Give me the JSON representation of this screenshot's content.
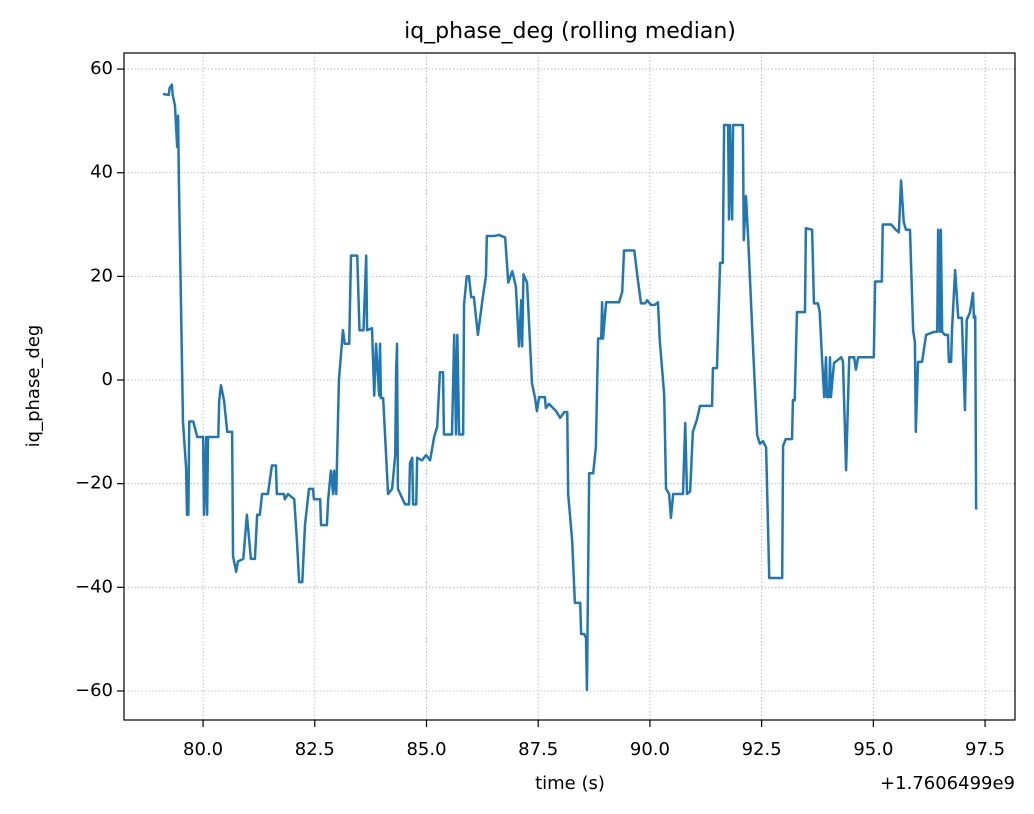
{
  "chart_data": {
    "type": "line",
    "title": "iq_phase_deg (rolling median)",
    "xlabel": "time (s)",
    "ylabel": "iq_phase_deg",
    "x_offset_label": "+1.7606499e9",
    "grid": true,
    "xlim": [
      78.23,
      98.17
    ],
    "ylim": [
      -65.6,
      63.1
    ],
    "xticks": [
      {
        "value": 80,
        "label": "80.0"
      },
      {
        "value": 82.5,
        "label": "82.5"
      },
      {
        "value": 85,
        "label": "85.0"
      },
      {
        "value": 87.5,
        "label": "87.5"
      },
      {
        "value": 90,
        "label": "90.0"
      },
      {
        "value": 92.5,
        "label": "92.5"
      },
      {
        "value": 95,
        "label": "95.0"
      },
      {
        "value": 97.5,
        "label": "97.5"
      }
    ],
    "yticks": [
      {
        "value": -60,
        "label": "−60"
      },
      {
        "value": -40,
        "label": "−40"
      },
      {
        "value": -20,
        "label": "−20"
      },
      0,
      20,
      40,
      60
    ],
    "x": [
      79.1,
      79.23,
      79.25,
      79.3,
      79.32,
      79.37,
      79.42,
      79.44,
      79.46,
      79.55,
      79.62,
      79.64,
      79.67,
      79.69,
      79.78,
      79.87,
      80.0,
      80.02,
      80.07,
      80.09,
      80.11,
      80.34,
      80.36,
      80.4,
      80.47,
      80.54,
      80.65,
      80.67,
      80.74,
      80.78,
      80.9,
      80.98,
      81.07,
      81.16,
      81.21,
      81.27,
      81.32,
      81.45,
      81.54,
      81.63,
      81.65,
      81.81,
      81.83,
      81.9,
      82.04,
      82.1,
      82.15,
      82.22,
      82.28,
      82.37,
      82.46,
      82.48,
      82.62,
      82.64,
      82.77,
      82.8,
      82.86,
      82.91,
      82.93,
      82.98,
      83.04,
      83.13,
      83.17,
      83.27,
      83.31,
      83.45,
      83.5,
      83.59,
      83.65,
      83.67,
      83.78,
      83.83,
      83.87,
      83.94,
      83.96,
      83.98,
      84.03,
      84.14,
      84.23,
      84.3,
      84.32,
      84.34,
      84.36,
      84.52,
      84.61,
      84.63,
      84.68,
      84.7,
      84.77,
      84.79,
      84.9,
      84.99,
      85.08,
      85.17,
      85.24,
      85.3,
      85.37,
      85.39,
      85.57,
      85.62,
      85.66,
      85.69,
      85.73,
      85.82,
      85.84,
      85.9,
      85.95,
      86.0,
      86.06,
      86.15,
      86.26,
      86.33,
      86.35,
      86.53,
      86.62,
      86.76,
      86.83,
      86.92,
      87.0,
      87.07,
      87.12,
      87.14,
      87.17,
      87.25,
      87.36,
      87.43,
      87.47,
      87.52,
      87.65,
      87.67,
      87.74,
      87.9,
      87.99,
      88.08,
      88.15,
      88.17,
      88.26,
      88.32,
      88.44,
      88.46,
      88.53,
      88.57,
      88.59,
      88.64,
      88.73,
      88.79,
      88.84,
      88.91,
      88.93,
      88.95,
      89.02,
      89.31,
      89.38,
      89.42,
      89.65,
      89.72,
      89.8,
      89.89,
      89.94,
      90.02,
      90.11,
      90.18,
      90.22,
      90.32,
      90.36,
      90.43,
      90.47,
      90.52,
      90.67,
      90.74,
      90.79,
      90.83,
      90.9,
      90.96,
      91.05,
      91.12,
      91.39,
      91.41,
      91.5,
      91.57,
      91.63,
      91.66,
      91.75,
      91.77,
      91.79,
      91.84,
      91.86,
      92.08,
      92.1,
      92.15,
      92.2,
      92.31,
      92.4,
      92.46,
      92.53,
      92.6,
      92.67,
      92.96,
      92.98,
      93.04,
      93.18,
      93.2,
      93.24,
      93.29,
      93.47,
      93.49,
      93.63,
      93.67,
      93.76,
      93.8,
      93.85,
      93.9,
      93.94,
      93.96,
      94.01,
      94.03,
      94.05,
      94.12,
      94.21,
      94.28,
      94.32,
      94.39,
      94.46,
      94.57,
      94.61,
      94.66,
      94.75,
      95.01,
      95.04,
      95.19,
      95.21,
      95.4,
      95.5,
      95.57,
      95.62,
      95.68,
      95.73,
      95.82,
      95.89,
      95.93,
      95.95,
      96.0,
      96.09,
      96.18,
      96.36,
      96.43,
      96.45,
      96.49,
      96.51,
      96.54,
      96.6,
      96.67,
      96.69,
      96.74,
      96.76,
      96.83,
      96.9,
      96.98,
      97.05,
      97.09,
      97.16,
      97.23,
      97.25,
      97.28,
      97.3
    ],
    "series": [
      {
        "color": "#1f77b4",
        "values": [
          55.2,
          55,
          56.3,
          57,
          55,
          53,
          45,
          51,
          37.6,
          -8,
          -17,
          -26,
          -26,
          -8,
          -8,
          -11,
          -11,
          -26,
          -11,
          -26,
          -11,
          -11,
          -4,
          -1,
          -4,
          -10,
          -10,
          -34,
          -37,
          -35,
          -34.5,
          -26,
          -34.5,
          -34.5,
          -26,
          -26,
          -22,
          -22,
          -16.5,
          -16.5,
          -22,
          -22,
          -23,
          -22,
          -23,
          -31,
          -39,
          -39,
          -28,
          -21,
          -21,
          -23,
          -23,
          -28,
          -28,
          -23,
          -17.5,
          -22,
          -17.5,
          -22,
          0,
          9.6,
          7,
          7,
          24,
          24,
          9.6,
          9.6,
          24,
          9.6,
          10,
          -3,
          7,
          -3,
          7,
          -3.5,
          -3.5,
          -22,
          -21,
          -14.5,
          1.5,
          7,
          -21,
          -24,
          -24,
          -16,
          -15,
          -24,
          -24,
          -15,
          -15.5,
          -14.5,
          -15.5,
          -11,
          -9,
          1.5,
          1.5,
          -10.5,
          -10.5,
          8.7,
          -10.5,
          8.7,
          -10.5,
          -10.5,
          14.5,
          20,
          20,
          16,
          16,
          8.7,
          16,
          20,
          27.8,
          27.8,
          28,
          27.5,
          18.8,
          21,
          18,
          6.5,
          15.4,
          6.5,
          20.4,
          18.8,
          -0.6,
          -3.5,
          -6,
          -3.3,
          -3.3,
          -5.4,
          -4.6,
          -6,
          -7.3,
          -6.2,
          -6.2,
          -22,
          -31,
          -43,
          -43,
          -49,
          -49,
          -49.8,
          -59.8,
          -18,
          -18,
          -13,
          8,
          8,
          15,
          8,
          15,
          15,
          17,
          25,
          25,
          20,
          14.8,
          14.8,
          15.4,
          14.5,
          14.5,
          15,
          7.7,
          -3,
          -21,
          -22,
          -26.6,
          -22,
          -22,
          -22,
          -8.3,
          -22,
          -21.5,
          -10,
          -7.7,
          -5,
          -5,
          2.3,
          2.3,
          22.6,
          22.6,
          49.2,
          49.2,
          31,
          49.2,
          31,
          49.2,
          49.2,
          27,
          35.5,
          27,
          5.8,
          -10.6,
          -12.3,
          -11.8,
          -13,
          -38.2,
          -38.2,
          -12.7,
          -11.4,
          -11.4,
          -3.9,
          -3.9,
          13.1,
          13.1,
          29.3,
          29,
          14.8,
          14.8,
          13.1,
          4.4,
          -3.3,
          4.4,
          -3.3,
          -3.3,
          4.4,
          -3.3,
          3.3,
          3.9,
          4.4,
          3.6,
          -17.4,
          4.4,
          4.4,
          2,
          4.4,
          4.4,
          4.4,
          19,
          19,
          30,
          30,
          29,
          28.5,
          38.5,
          30.5,
          29,
          29,
          9.6,
          7.3,
          -10,
          3.5,
          3.5,
          8.7,
          9.3,
          9.3,
          29,
          9.3,
          29,
          9.3,
          8.7,
          8.7,
          3.5,
          3.5,
          9.6,
          21.2,
          12,
          12,
          -5.8,
          11.6,
          13,
          16.8,
          12,
          12.3,
          -25
        ]
      }
    ]
  }
}
